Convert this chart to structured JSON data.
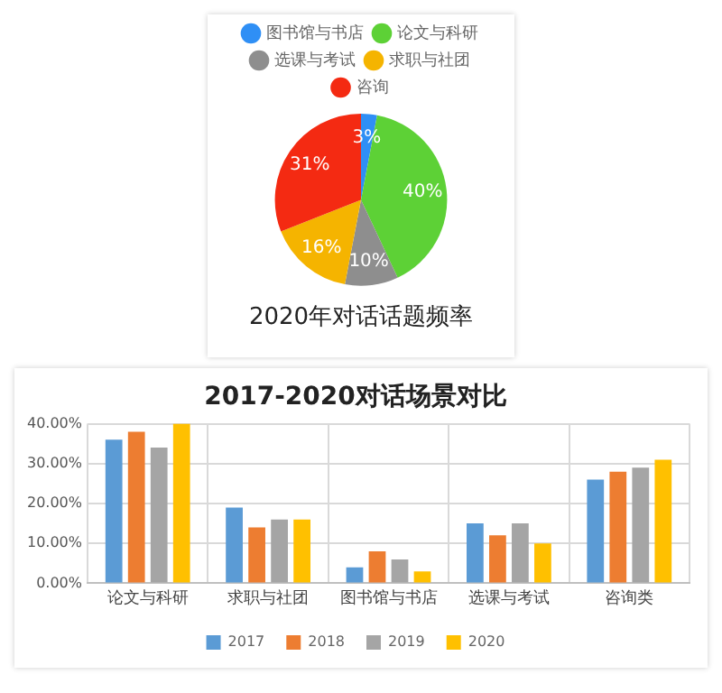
{
  "chart_data": [
    {
      "type": "pie",
      "title": "2020年对话话题频率",
      "categories": [
        "图书馆与书店",
        "论文与科研",
        "选课与考试",
        "求职与社团",
        "咨询"
      ],
      "values": [
        3,
        40,
        10,
        16,
        31
      ],
      "colors": [
        "#2f8ff5",
        "#5dd136",
        "#8e8e8e",
        "#f5b400",
        "#f42a12"
      ],
      "value_labels": [
        "3%",
        "40%",
        "10%",
        "16%",
        "31%"
      ],
      "legend": "top"
    },
    {
      "type": "bar",
      "title": "2017-2020对话场景对比",
      "categories": [
        "论文与科研",
        "求职与社团",
        "图书馆与书店",
        "选课与考试",
        "咨询类"
      ],
      "series": [
        {
          "name": "2017",
          "color": "#5b9bd5",
          "values": [
            36,
            19,
            4,
            15,
            26
          ]
        },
        {
          "name": "2018",
          "color": "#ed7d31",
          "values": [
            38,
            14,
            8,
            12,
            28
          ]
        },
        {
          "name": "2019",
          "color": "#a5a5a5",
          "values": [
            34,
            16,
            6,
            15,
            29
          ]
        },
        {
          "name": "2020",
          "color": "#ffc000",
          "values": [
            40,
            16,
            3,
            10,
            31
          ]
        }
      ],
      "ylim": [
        0,
        40
      ],
      "yticks": [
        {
          "value": 0,
          "label": "0.00%"
        },
        {
          "value": 10,
          "label": "10.00%"
        },
        {
          "value": 20,
          "label": "20.00%"
        },
        {
          "value": 30,
          "label": "30.00%"
        },
        {
          "value": 40,
          "label": "40.00%"
        }
      ],
      "grid": true,
      "legend": "bottom"
    }
  ]
}
